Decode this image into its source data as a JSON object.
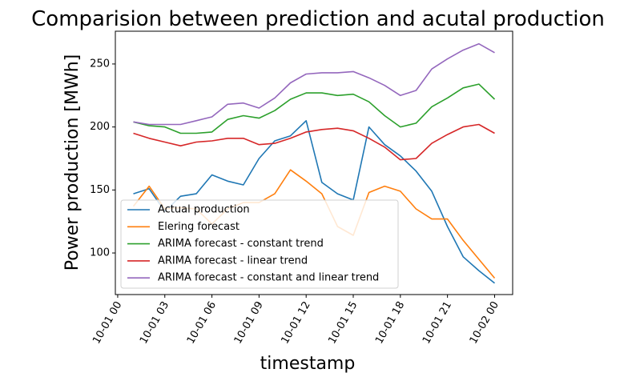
{
  "chart_data": {
    "type": "line",
    "title": "Comparision between prediction and acutal production",
    "xlabel": "timestamp",
    "ylabel": "Power production [MWh]",
    "x_ticks": [
      "10-01 00",
      "10-01 03",
      "10-01 06",
      "10-01 09",
      "10-01 12",
      "10-01 15",
      "10-01 18",
      "10-01 21",
      "10-02 00"
    ],
    "x_tick_hours": [
      0,
      3,
      6,
      9,
      12,
      15,
      18,
      21,
      24
    ],
    "y_ticks": [
      100,
      150,
      200,
      250
    ],
    "xlim": [
      -0.15,
      25.15
    ],
    "ylim": [
      67,
      276
    ],
    "grid": false,
    "legend_position": "lower-left",
    "x_hours": [
      1,
      2,
      3,
      4,
      5,
      6,
      7,
      8,
      9,
      10,
      11,
      12,
      13,
      14,
      15,
      16,
      17,
      18,
      19,
      20,
      21,
      22,
      23,
      24
    ],
    "series": [
      {
        "name": "Actual production",
        "color": "#1f77b4",
        "values": [
          147,
          151,
          133,
          145,
          147,
          162,
          157,
          154,
          175,
          189,
          193,
          205,
          156,
          147,
          142,
          200,
          186,
          177,
          165,
          149,
          121,
          97,
          86,
          76
        ]
      },
      {
        "name": "Elering forecast",
        "color": "#ff7f0e",
        "values": [
          137,
          153,
          135,
          136,
          135,
          123,
          135,
          140,
          140,
          147,
          166,
          157,
          147,
          121,
          114,
          148,
          153,
          149,
          135,
          127,
          127,
          110,
          95,
          80
        ]
      },
      {
        "name": "ARIMA forecast - constant trend",
        "color": "#2ca02c",
        "values": [
          204,
          201,
          200,
          195,
          195,
          196,
          206,
          209,
          207,
          213,
          222,
          227,
          227,
          225,
          226,
          220,
          209,
          200,
          203,
          216,
          223,
          231,
          234,
          222
        ]
      },
      {
        "name": "ARIMA forecast - linear trend",
        "color": "#d62728",
        "values": [
          195,
          191,
          188,
          185,
          188,
          189,
          191,
          191,
          186,
          187,
          191,
          196,
          198,
          199,
          197,
          191,
          184,
          174,
          175,
          187,
          194,
          200,
          202,
          195
        ]
      },
      {
        "name": "ARIMA forecast - constant and linear trend",
        "color": "#9467bd",
        "values": [
          204,
          202,
          202,
          202,
          205,
          208,
          218,
          219,
          215,
          223,
          235,
          242,
          243,
          243,
          244,
          239,
          233,
          225,
          229,
          246,
          254,
          261,
          266,
          259
        ]
      }
    ]
  }
}
